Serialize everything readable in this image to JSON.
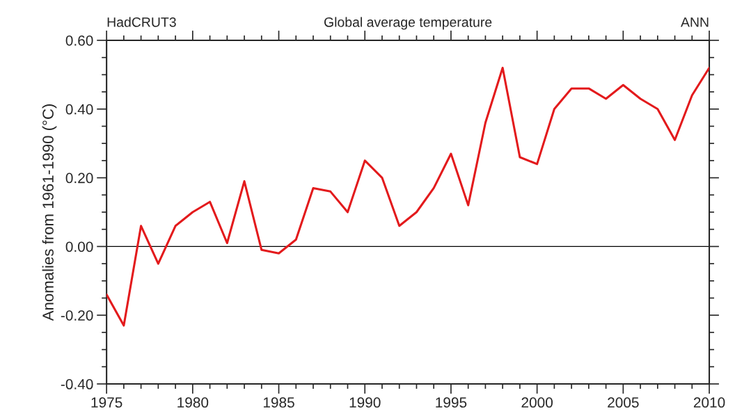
{
  "chart_data": {
    "type": "line",
    "title": "Global average temperature",
    "annotations": [
      "HadCRUT3",
      "ANN"
    ],
    "ylabel": "Anomalies from 1961-1990 (°C)",
    "x": [
      1975,
      1976,
      1977,
      1978,
      1979,
      1980,
      1981,
      1982,
      1983,
      1984,
      1985,
      1986,
      1987,
      1988,
      1989,
      1990,
      1991,
      1992,
      1993,
      1994,
      1995,
      1996,
      1997,
      1998,
      1999,
      2000,
      2001,
      2002,
      2003,
      2004,
      2005,
      2006,
      2007,
      2008,
      2009,
      2010
    ],
    "series": [
      {
        "color": "#e31a1c",
        "values": [
          -0.14,
          -0.23,
          0.06,
          -0.05,
          0.06,
          0.1,
          0.13,
          0.01,
          0.19,
          -0.01,
          -0.02,
          0.02,
          0.17,
          0.16,
          0.1,
          0.25,
          0.2,
          0.06,
          0.1,
          0.17,
          0.27,
          0.12,
          0.36,
          0.52,
          0.26,
          0.24,
          0.4,
          0.46,
          0.46,
          0.43,
          0.47,
          0.43,
          0.4,
          0.31,
          0.44,
          0.52
        ]
      }
    ],
    "xlim": [
      1975,
      2010
    ],
    "xticks": [
      1975,
      1980,
      1985,
      1990,
      1995,
      2000,
      2005,
      2010
    ],
    "ylim": [
      -0.4,
      0.6
    ],
    "yticks": [
      {
        "value": -0.4,
        "label": "-0.40"
      },
      {
        "value": -0.2,
        "label": "-0.20"
      },
      {
        "value": 0,
        "label": "0.00"
      },
      {
        "value": 0.2,
        "label": "0.20"
      },
      {
        "value": 0.4,
        "label": "0.40"
      },
      {
        "value": 0.6,
        "label": "0.60"
      }
    ],
    "ref_lines": [
      {
        "axis": "y",
        "value": 0,
        "color": "#000000"
      }
    ],
    "grid": false,
    "legend": false,
    "marker": "none",
    "line_style": "solid"
  }
}
